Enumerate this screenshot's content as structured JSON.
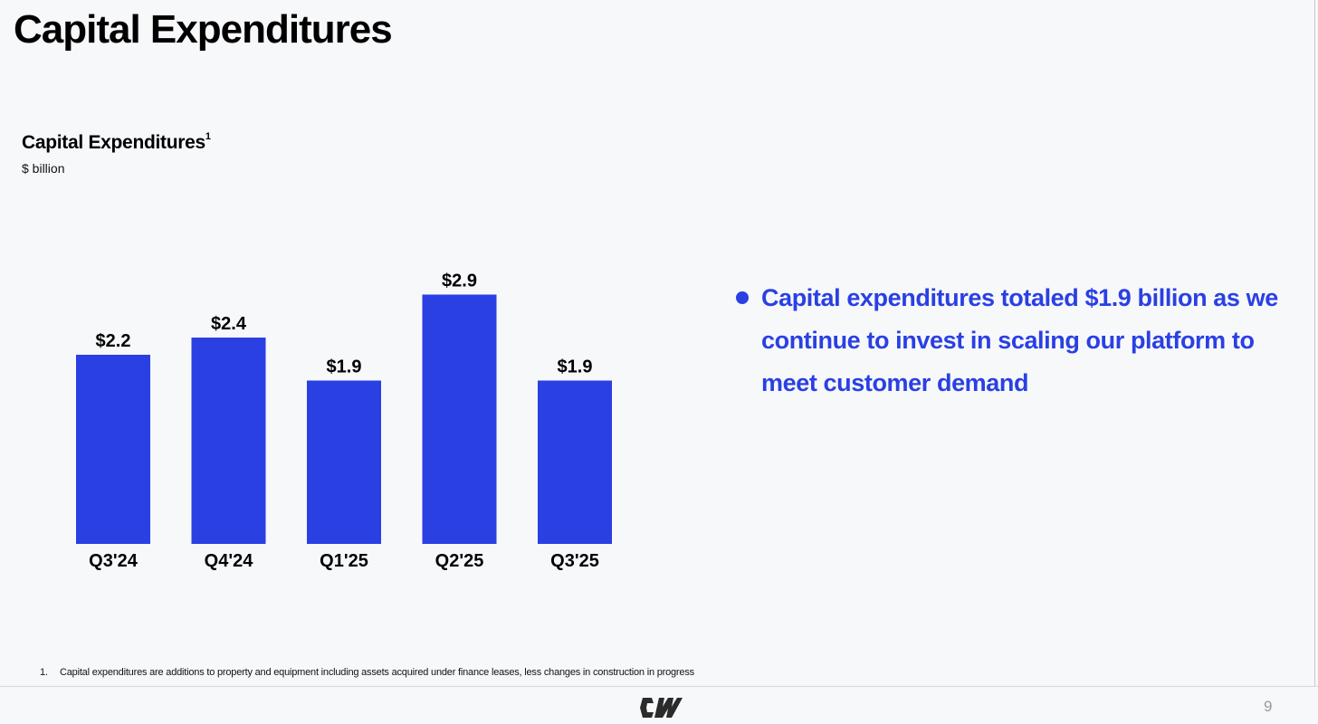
{
  "page": {
    "title": "Capital Expenditures",
    "page_number": "9"
  },
  "chart_data": {
    "type": "bar",
    "title": "Capital Expenditures",
    "title_footnote_marker": "1",
    "unit_label": "$ billion",
    "categories": [
      "Q3'24",
      "Q4'24",
      "Q1'25",
      "Q2'25",
      "Q3'25"
    ],
    "values": [
      2.2,
      2.4,
      1.9,
      2.9,
      1.9
    ],
    "data_labels": [
      "$2.2",
      "$2.4",
      "$1.9",
      "$2.9",
      "$1.9"
    ],
    "bar_color": "#2a40e3",
    "grid": false,
    "legend": "none"
  },
  "bullets": [
    "Capital expenditures totaled $1.9 billion as we continue to invest in scaling our platform to meet customer demand"
  ],
  "footnote": {
    "number": "1.",
    "text": "Capital expenditures are additions to property and equipment including assets acquired under finance leases, less changes in construction in progress"
  },
  "colors": {
    "accent": "#2a40e3",
    "background": "#f7f8fa"
  },
  "logo": {
    "icon": "coreweave-logo-icon"
  }
}
